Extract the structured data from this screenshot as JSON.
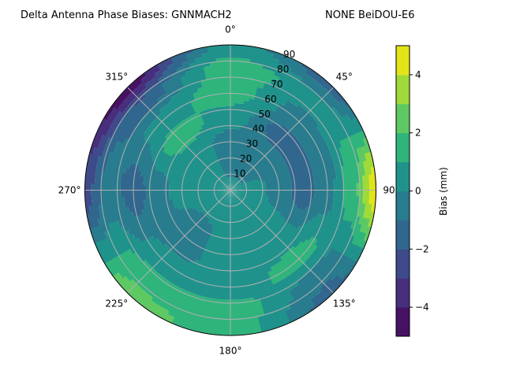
{
  "chart_data": {
    "type": "heatmap",
    "subtype": "polar-filled-contour",
    "title_left": "Delta Antenna Phase Biases: GNNMACH2",
    "title_right": "NONE BeiDOU-E6",
    "theta_zero": "top",
    "theta_direction": "clockwise",
    "theta_tick_labels": [
      "0°",
      "45°",
      "90°",
      "135°",
      "180°",
      "225°",
      "270°",
      "315°"
    ],
    "radial_tick_labels": [
      "10",
      "20",
      "30",
      "40",
      "50",
      "60",
      "70",
      "80",
      "90"
    ],
    "rlim": [
      0,
      90
    ],
    "grid": true,
    "azimuth_deg": [
      0,
      45,
      90,
      135,
      180,
      225,
      270,
      315
    ],
    "zenith_deg": [
      0,
      15,
      30,
      45,
      60,
      75,
      90
    ],
    "bias_mm": [
      [
        0.5,
        -0.5,
        -0.5,
        0.5,
        1.5,
        1.5,
        0.5
      ],
      [
        0.5,
        -0.5,
        -0.5,
        -1.5,
        -0.5,
        0.5,
        -1.5
      ],
      [
        0.5,
        0.5,
        -0.5,
        -1.5,
        -0.5,
        1.5,
        4.5
      ],
      [
        0.5,
        0.5,
        0.5,
        0.5,
        1.5,
        -0.5,
        -1.5
      ],
      [
        0.5,
        0.5,
        0.5,
        0.5,
        0.5,
        1.5,
        1.5
      ],
      [
        0.5,
        0.5,
        -0.5,
        -0.5,
        0.5,
        1.5,
        2.5
      ],
      [
        0.5,
        0.5,
        0.5,
        -0.5,
        -1.5,
        -0.5,
        -2.5
      ],
      [
        0.5,
        0.5,
        0.5,
        1.5,
        0.5,
        -1.5,
        -4.5
      ]
    ],
    "colorbar": {
      "label": "Bias (mm)",
      "levels": [
        -5,
        -4,
        -3,
        -2,
        -1,
        0,
        1,
        2,
        3,
        4,
        5
      ],
      "tick_labels": [
        "−4",
        "−2",
        "0",
        "2",
        "4"
      ],
      "tick_values": [
        -4,
        -2,
        0,
        2,
        4
      ],
      "colormap": "viridis",
      "colors": [
        "#471164",
        "#472f7d",
        "#3e4a89",
        "#31668e",
        "#287c8e",
        "#20928c",
        "#2fb47c",
        "#5ec962",
        "#a0da39",
        "#e2e418"
      ]
    }
  }
}
